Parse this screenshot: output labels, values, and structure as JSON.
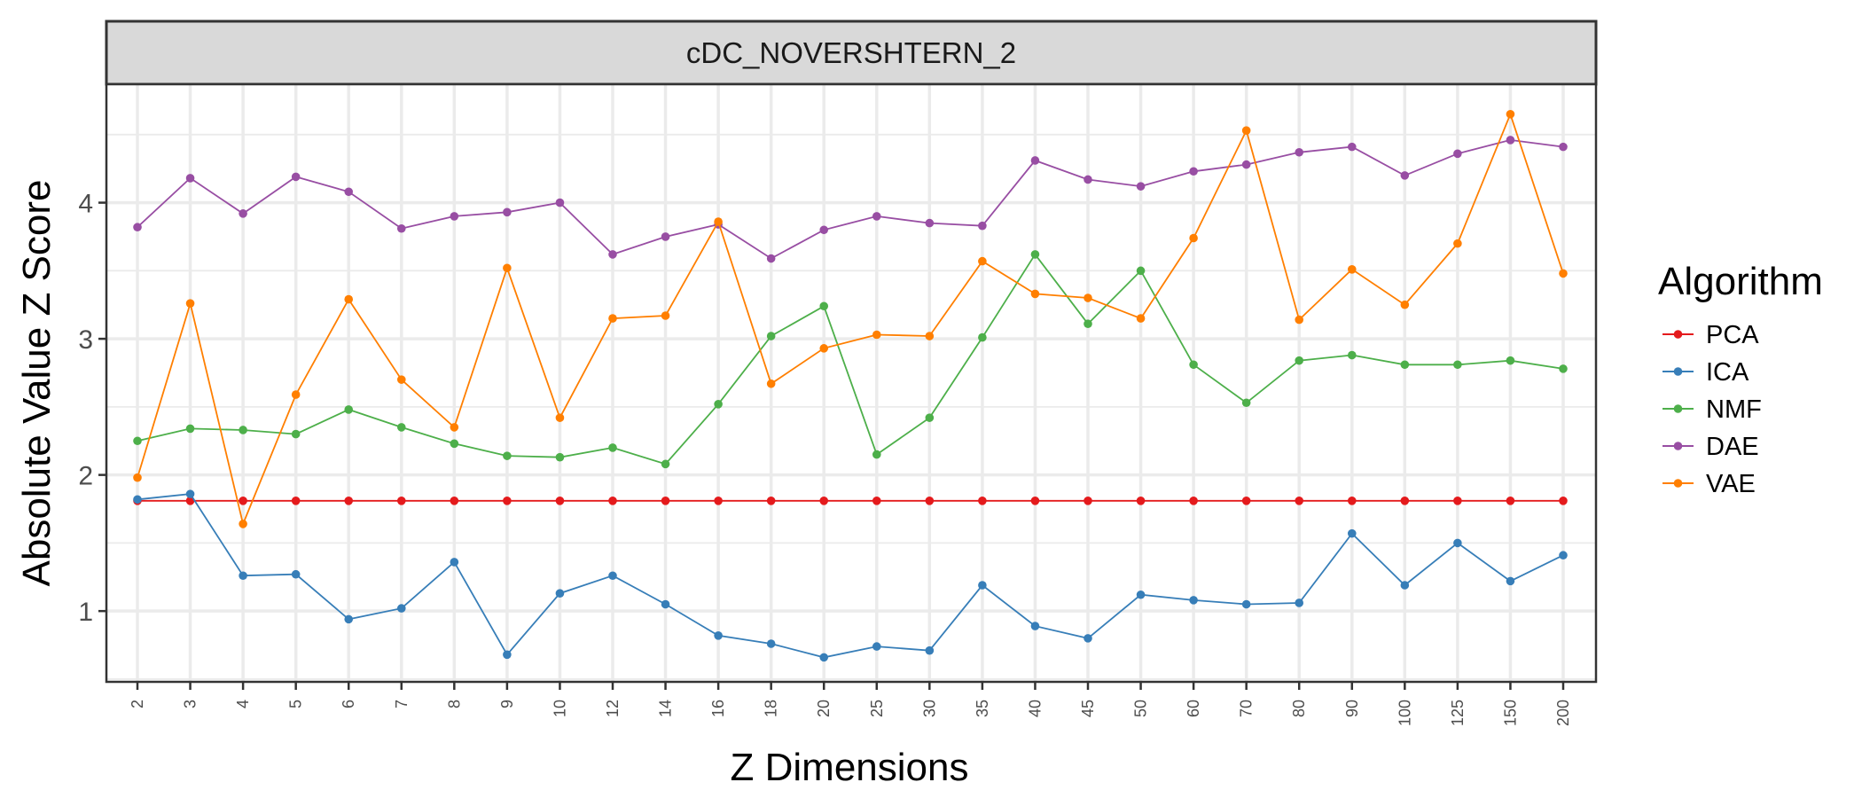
{
  "chart_data": {
    "type": "line",
    "title": "cDC_NOVERSHTERN_2",
    "xlabel": "Z Dimensions",
    "ylabel": "Absolute Value Z Score",
    "categories": [
      "2",
      "3",
      "4",
      "5",
      "6",
      "7",
      "8",
      "9",
      "10",
      "12",
      "14",
      "16",
      "18",
      "20",
      "25",
      "30",
      "35",
      "40",
      "45",
      "50",
      "60",
      "70",
      "80",
      "90",
      "100",
      "125",
      "150",
      "200"
    ],
    "ylim": [
      0.48,
      4.87
    ],
    "yticks": [
      1,
      2,
      3,
      4
    ],
    "grid": true,
    "legend": {
      "title": "Algorithm",
      "position": "right"
    },
    "series": [
      {
        "name": "PCA",
        "color": "#e41a1c",
        "values": [
          1.81,
          1.81,
          1.81,
          1.81,
          1.81,
          1.81,
          1.81,
          1.81,
          1.81,
          1.81,
          1.81,
          1.81,
          1.81,
          1.81,
          1.81,
          1.81,
          1.81,
          1.81,
          1.81,
          1.81,
          1.81,
          1.81,
          1.81,
          1.81,
          1.81,
          1.81,
          1.81,
          1.81
        ]
      },
      {
        "name": "ICA",
        "color": "#377eb8",
        "values": [
          1.82,
          1.86,
          1.26,
          1.27,
          0.94,
          1.02,
          1.36,
          0.68,
          1.13,
          1.26,
          1.05,
          0.82,
          0.76,
          0.66,
          0.74,
          0.71,
          1.19,
          0.89,
          0.8,
          1.12,
          1.08,
          1.05,
          1.06,
          1.57,
          1.19,
          1.5,
          1.22,
          1.41
        ]
      },
      {
        "name": "NMF",
        "color": "#4daf4a",
        "values": [
          2.25,
          2.34,
          2.33,
          2.3,
          2.48,
          2.35,
          2.23,
          2.14,
          2.13,
          2.2,
          2.08,
          2.52,
          3.02,
          3.24,
          2.15,
          2.42,
          3.01,
          3.62,
          3.11,
          3.5,
          2.81,
          2.53,
          2.84,
          2.88,
          2.81,
          2.81,
          2.84,
          2.78
        ]
      },
      {
        "name": "DAE",
        "color": "#984ea3",
        "values": [
          3.82,
          4.18,
          3.92,
          4.19,
          4.08,
          3.81,
          3.9,
          3.93,
          4.0,
          3.62,
          3.75,
          3.84,
          3.59,
          3.8,
          3.9,
          3.85,
          3.83,
          4.31,
          4.17,
          4.12,
          4.23,
          4.28,
          4.37,
          4.41,
          4.2,
          4.36,
          4.46,
          4.41
        ]
      },
      {
        "name": "VAE",
        "color": "#ff7f00",
        "values": [
          1.98,
          3.26,
          1.64,
          2.59,
          3.29,
          2.7,
          2.35,
          3.52,
          2.42,
          3.15,
          3.17,
          3.86,
          2.67,
          2.93,
          3.03,
          3.02,
          3.57,
          3.33,
          3.3,
          3.15,
          3.74,
          4.53,
          3.14,
          3.51,
          3.25,
          3.7,
          4.65,
          3.48
        ]
      }
    ]
  }
}
